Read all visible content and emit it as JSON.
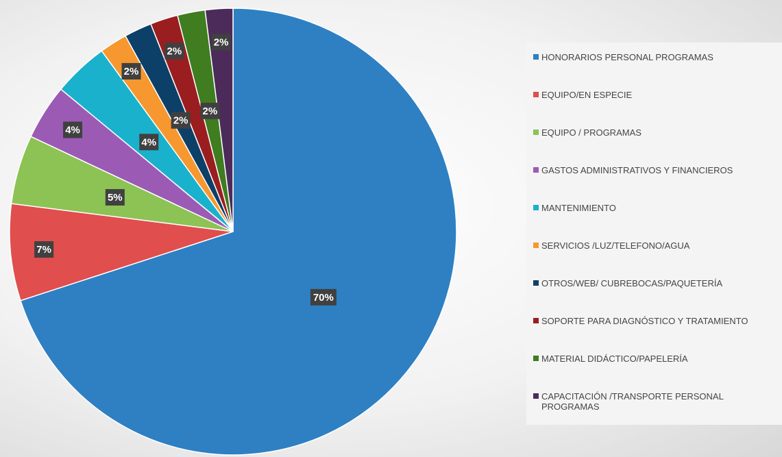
{
  "chart_data": {
    "type": "pie",
    "categories": [
      "HONORARIOS PERSONAL PROGRAMAS",
      "EQUIPO/EN ESPECIE",
      "EQUIPO / PROGRAMAS",
      "GASTOS ADMINISTRATIVOS Y FINANCIEROS",
      "MANTENIMIENTO",
      "SERVICIOS /LUZ/TELEFONO/AGUA",
      "OTROS/WEB/ CUBREBOCAS/PAQUETERÍA",
      "SOPORTE PARA DIAGNÓSTICO Y TRATAMIENTO",
      "MATERIAL DIDÁCTICO/PAPELERÍA",
      "CAPACITACIÓN /TRANSPORTE PERSONAL PROGRAMAS"
    ],
    "values": [
      70,
      7,
      5,
      4,
      4,
      2,
      2,
      2,
      2,
      2
    ],
    "value_labels": [
      "70%",
      "7%",
      "5%",
      "4%",
      "4%",
      "2%",
      "2%",
      "2%",
      "2%",
      "2%"
    ],
    "colors": [
      "#2e80c3",
      "#e04e4e",
      "#8dc255",
      "#9b5bb5",
      "#1ab1cd",
      "#f7972f",
      "#0d4068",
      "#9a1e20",
      "#3f7d20",
      "#4c2b5a"
    ],
    "legend": "right"
  }
}
